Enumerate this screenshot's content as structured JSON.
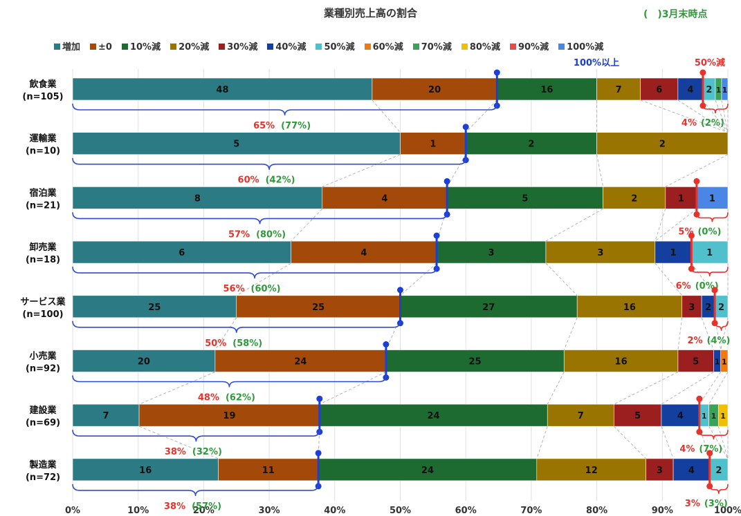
{
  "title": "業種別売上高の割合",
  "note": "(　)3月末時点",
  "chart_data": {
    "type": "bar",
    "orientation": "horizontal",
    "stacked": "percent",
    "title": "業種別売上高の割合",
    "xlim": [
      0,
      100
    ],
    "xticks": [
      "0%",
      "10%",
      "20%",
      "30%",
      "40%",
      "50%",
      "60%",
      "70%",
      "80%",
      "90%",
      "100%"
    ],
    "grid": "vertical",
    "legend_position": "top",
    "segments": [
      "増加",
      "±0",
      "10%減",
      "20%減",
      "30%減",
      "40%減",
      "50%減",
      "60%減",
      "70%減",
      "80%減",
      "90%減",
      "100%減"
    ],
    "colors": [
      "#2b7a84",
      "#a34a0a",
      "#1e6b32",
      "#9a7400",
      "#9c1f1f",
      "#153f9e",
      "#4fc0cc",
      "#f07a12",
      "#3aa35a",
      "#f0c000",
      "#e84a4a",
      "#4a86e6"
    ],
    "categories": [
      {
        "name": "飲食業",
        "n": "(n=105)",
        "values": [
          48,
          20,
          16,
          7,
          6,
          4,
          2,
          0,
          1,
          0,
          0,
          1
        ],
        "cum_label": "65%",
        "cum_prev": "(77%)",
        "tail_label": "4%",
        "tail_prev": "(2%)"
      },
      {
        "name": "運輸業",
        "n": "(n=10)",
        "values": [
          5,
          1,
          2,
          2,
          0,
          0,
          0,
          0,
          0,
          0,
          0,
          0
        ],
        "cum_label": "60%",
        "cum_prev": "(42%)",
        "tail_label": "",
        "tail_prev": ""
      },
      {
        "name": "宿泊業",
        "n": "(n=21)",
        "values": [
          8,
          4,
          5,
          2,
          1,
          0,
          0,
          0,
          0,
          0,
          0,
          1
        ],
        "cum_label": "57%",
        "cum_prev": "(80%)",
        "tail_label": "5%",
        "tail_prev": "(0%)"
      },
      {
        "name": "卸売業",
        "n": "(n=18)",
        "values": [
          6,
          4,
          3,
          3,
          0,
          1,
          1,
          0,
          0,
          0,
          0,
          0
        ],
        "cum_label": "56%",
        "cum_prev": "(60%)",
        "tail_label": "6%",
        "tail_prev": "(0%)"
      },
      {
        "name": "サービス業",
        "n": "(n=100)",
        "values": [
          25,
          25,
          27,
          16,
          3,
          2,
          2,
          0,
          0,
          0,
          0,
          0
        ],
        "cum_label": "50%",
        "cum_prev": "(58%)",
        "tail_label": "2%",
        "tail_prev": "(4%)"
      },
      {
        "name": "小売業",
        "n": "(n=92)",
        "values": [
          20,
          24,
          25,
          16,
          5,
          1,
          0,
          1,
          0,
          0,
          0,
          0
        ],
        "cum_label": "48%",
        "cum_prev": "(62%)",
        "tail_label": "",
        "tail_prev": ""
      },
      {
        "name": "建設業",
        "n": "(n=69)",
        "values": [
          7,
          19,
          24,
          7,
          5,
          4,
          1,
          0,
          1,
          1,
          0,
          0
        ],
        "cum_label": "38%",
        "cum_prev": "(32%)",
        "tail_label": "4%",
        "tail_prev": "(7%)"
      },
      {
        "name": "製造業",
        "n": "(n=72)",
        "values": [
          16,
          11,
          24,
          12,
          3,
          4,
          2,
          0,
          0,
          0,
          0,
          0
        ],
        "cum_label": "38%",
        "cum_prev": "(57%)",
        "tail_label": "3%",
        "tail_prev": "(3%)"
      }
    ],
    "annotations": [
      {
        "text": "100%以上",
        "color": "#1c3fd6",
        "near": "飲食業"
      },
      {
        "text": "50%減",
        "color": "#e8322c",
        "near": "飲食業"
      }
    ]
  }
}
